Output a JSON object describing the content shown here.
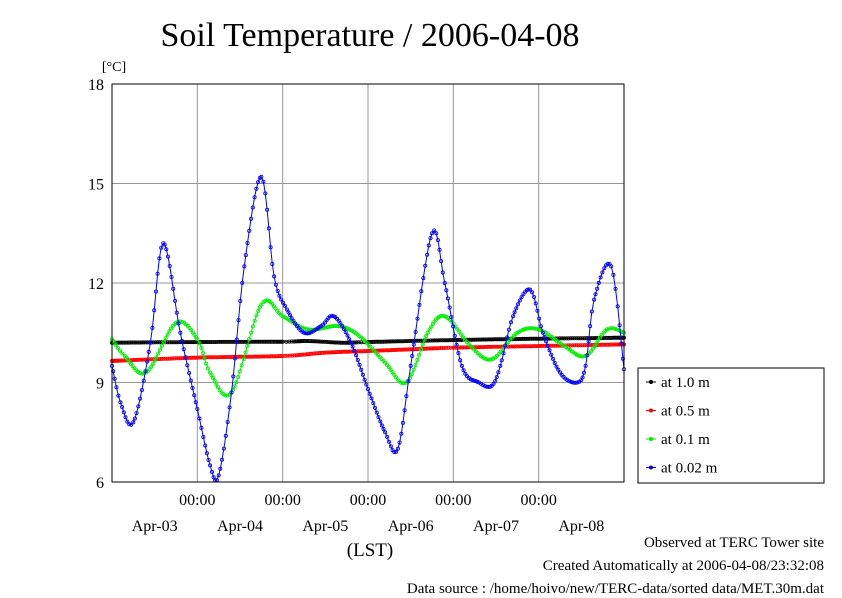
{
  "chart_data": {
    "type": "line",
    "title": "Soil Temperature / 2006-04-08",
    "ylabel": "[°C]",
    "xlabel": "(LST)",
    "ylim": [
      6,
      18
    ],
    "yticks": [
      6,
      9,
      12,
      15,
      18
    ],
    "xlim": [
      0,
      6
    ],
    "time_ticks": [
      {
        "x": 1,
        "label": "00:00"
      },
      {
        "x": 2,
        "label": "00:00"
      },
      {
        "x": 3,
        "label": "00:00"
      },
      {
        "x": 4,
        "label": "00:00"
      },
      {
        "x": 5,
        "label": "00:00"
      }
    ],
    "date_labels": [
      {
        "x": 0.5,
        "label": "Apr-03"
      },
      {
        "x": 1.5,
        "label": "Apr-04"
      },
      {
        "x": 2.5,
        "label": "Apr-05"
      },
      {
        "x": 3.5,
        "label": "Apr-06"
      },
      {
        "x": 4.5,
        "label": "Apr-07"
      },
      {
        "x": 5.5,
        "label": "Apr-08"
      }
    ],
    "grid": true,
    "legend_position": "right",
    "series": [
      {
        "name": "at 1.0 m",
        "color": "#000000",
        "x": [
          0,
          1,
          2,
          2.3,
          2.7,
          3,
          4,
          5,
          6
        ],
        "y": [
          10.2,
          10.22,
          10.23,
          10.25,
          10.2,
          10.22,
          10.28,
          10.32,
          10.35
        ]
      },
      {
        "name": "at 0.5 m",
        "color": "#ff0000",
        "x": [
          0,
          1,
          2,
          2.5,
          3,
          3.5,
          4,
          5,
          6
        ],
        "y": [
          9.65,
          9.75,
          9.8,
          9.9,
          9.95,
          10.0,
          10.05,
          10.1,
          10.15
        ]
      },
      {
        "name": "at 0.1 m",
        "color": "#00ee00",
        "x": [
          0,
          0.15,
          0.4,
          0.75,
          1.0,
          1.15,
          1.4,
          1.75,
          2.0,
          2.3,
          2.65,
          2.9,
          3.2,
          3.45,
          3.7,
          3.9,
          4.2,
          4.45,
          4.75,
          5.0,
          5.3,
          5.55,
          5.8,
          6.0
        ],
        "y": [
          10.3,
          9.8,
          9.3,
          10.8,
          10.3,
          9.3,
          8.7,
          11.35,
          11.0,
          10.6,
          10.7,
          10.4,
          9.6,
          9.0,
          10.5,
          11.0,
          10.1,
          9.7,
          10.5,
          10.6,
          10.1,
          9.8,
          10.6,
          10.5
        ]
      },
      {
        "name": "at 0.02 m",
        "color": "#0000ff",
        "x": [
          0,
          0.1,
          0.25,
          0.45,
          0.6,
          0.8,
          1.0,
          1.15,
          1.25,
          1.4,
          1.55,
          1.75,
          1.9,
          2.05,
          2.25,
          2.45,
          2.6,
          2.8,
          3.0,
          3.2,
          3.35,
          3.5,
          3.75,
          3.9,
          4.1,
          4.3,
          4.45,
          4.55,
          4.7,
          4.9,
          5.05,
          5.25,
          5.45,
          5.55,
          5.65,
          5.85,
          6.0
        ],
        "y": [
          9.5,
          8.4,
          7.8,
          10.2,
          13.2,
          10.5,
          8.2,
          6.5,
          6.2,
          8.7,
          12.5,
          15.2,
          12.2,
          11.2,
          10.5,
          10.7,
          11.0,
          10.2,
          8.8,
          7.5,
          7.0,
          9.5,
          13.5,
          12.0,
          9.5,
          9.0,
          8.9,
          9.5,
          11.0,
          11.8,
          10.5,
          9.3,
          9.0,
          9.5,
          11.5,
          12.5,
          9.4
        ]
      }
    ]
  },
  "footer": {
    "line1": "Observed at TERC Tower site",
    "line2": "Created Automatically at 2006-04-08/23:32:08",
    "line3": "Data source : /home/hoivo/new/TERC-data/sorted  data/MET.30m.dat"
  }
}
